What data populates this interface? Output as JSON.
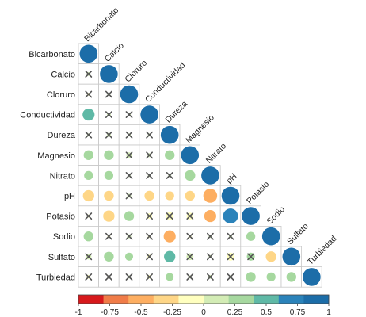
{
  "chart_data": {
    "type": "heatmap",
    "subtype": "lower-triangle correlation matrix",
    "variables": [
      "Bicarbonato",
      "Calcio",
      "Cloruro",
      "Conductividad",
      "Dureza",
      "Magnesio",
      "Nitrato",
      "pH",
      "Potasio",
      "Sodio",
      "Sulfato",
      "Turbiedad"
    ],
    "matrix": [
      [
        1
      ],
      [
        0.05,
        1
      ],
      [
        -0.02,
        0.0,
        1
      ],
      [
        0.45,
        0.05,
        0.02,
        1
      ],
      [
        0.0,
        0.05,
        0.0,
        0.0,
        1
      ],
      [
        0.3,
        0.3,
        0.1,
        0.05,
        0.3,
        1
      ],
      [
        0.25,
        0.25,
        0.0,
        0.03,
        0.03,
        0.35,
        1
      ],
      [
        -0.4,
        -0.3,
        0.05,
        -0.3,
        -0.25,
        -0.3,
        -0.6,
        1
      ],
      [
        -0.02,
        -0.4,
        0.3,
        -0.1,
        -0.2,
        -0.15,
        -0.45,
        0.7,
        1
      ],
      [
        0.3,
        -0.03,
        0.05,
        -0.03,
        -0.45,
        -0.02,
        0.0,
        0.03,
        0.25,
        1
      ],
      [
        0.1,
        0.3,
        0.2,
        -0.05,
        0.4,
        0.15,
        0.0,
        -0.2,
        0.2,
        -0.35,
        1
      ],
      [
        -0.05,
        -0.02,
        0.0,
        -0.05,
        0.2,
        0.0,
        0.05,
        0.0,
        0.3,
        0.25,
        0.3,
        1
      ]
    ],
    "not_significant": [
      [
        false
      ],
      [
        true,
        false
      ],
      [
        true,
        true,
        false
      ],
      [
        false,
        true,
        true,
        false
      ],
      [
        true,
        true,
        true,
        true,
        false
      ],
      [
        false,
        false,
        true,
        true,
        false,
        false
      ],
      [
        false,
        false,
        true,
        true,
        true,
        false,
        false
      ],
      [
        false,
        false,
        true,
        false,
        false,
        false,
        false,
        false
      ],
      [
        true,
        false,
        false,
        true,
        true,
        true,
        false,
        false,
        false
      ],
      [
        false,
        true,
        true,
        true,
        false,
        true,
        true,
        true,
        false,
        false
      ],
      [
        true,
        false,
        false,
        true,
        false,
        true,
        true,
        true,
        true,
        false,
        false
      ],
      [
        true,
        true,
        true,
        true,
        false,
        true,
        true,
        true,
        false,
        false,
        false,
        false
      ]
    ],
    "colorbar": {
      "range": [
        -1,
        1
      ],
      "ticks": [
        "-1",
        "-0.75",
        "-0.5",
        "-0.25",
        "0",
        "0.25",
        "0.5",
        "0.75",
        "1"
      ],
      "colors": [
        "#d7191c",
        "#f07c48",
        "#fdae61",
        "#fed687",
        "#ffffbf",
        "#d3ecb5",
        "#a6d89f",
        "#5fb9a6",
        "#2b83ba",
        "#1c6da8"
      ]
    }
  }
}
